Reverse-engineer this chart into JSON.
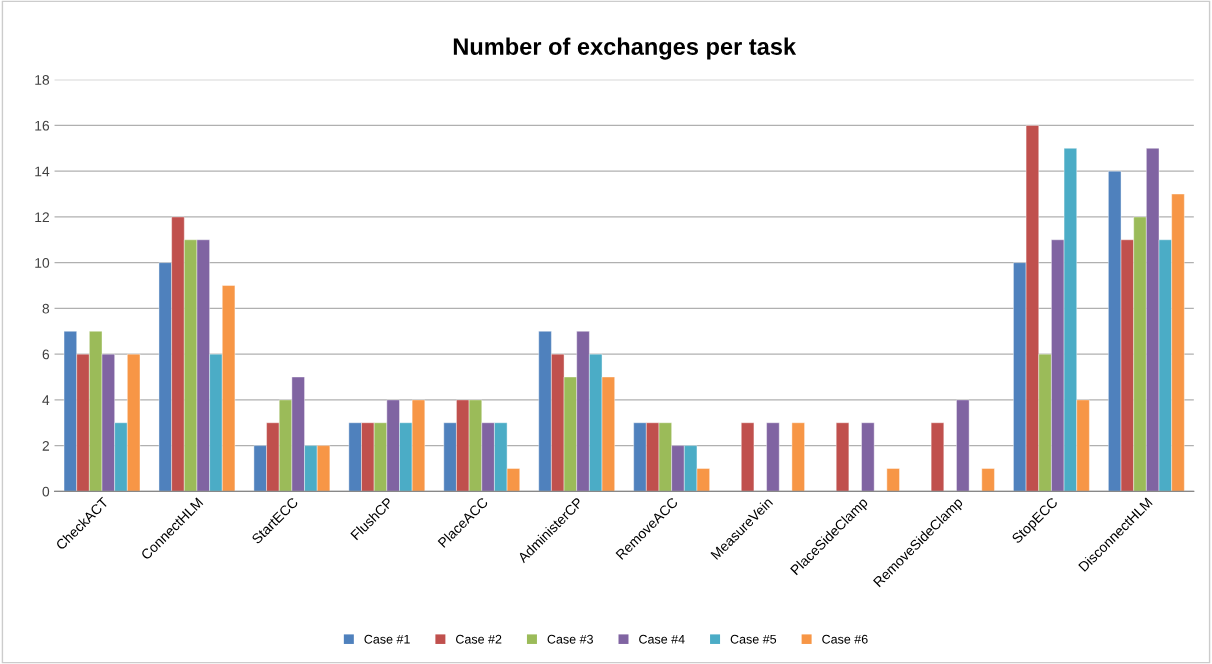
{
  "chart_data": {
    "type": "bar",
    "title": "Number of exchanges per task",
    "categories": [
      "CheckACT",
      "ConnectHLM",
      "StartECC",
      "FlushCP",
      "PlaceACC",
      "AdministerCP",
      "RemoveACC",
      "MeasureVein",
      "PlaceSideClamp",
      "RemoveSideClamp",
      "StopECC",
      "DisconnectHLM"
    ],
    "series": [
      {
        "name": "Case #1",
        "color": "#4f81bd",
        "values": [
          7,
          10,
          2,
          3,
          3,
          7,
          3,
          null,
          null,
          null,
          10,
          14
        ]
      },
      {
        "name": "Case #2",
        "color": "#c0504d",
        "values": [
          6,
          12,
          3,
          3,
          4,
          6,
          3,
          3,
          3,
          3,
          16,
          11
        ]
      },
      {
        "name": "Case #3",
        "color": "#9bbb59",
        "values": [
          7,
          11,
          4,
          3,
          4,
          5,
          3,
          null,
          null,
          null,
          6,
          12
        ]
      },
      {
        "name": "Case #4",
        "color": "#8064a2",
        "values": [
          6,
          11,
          5,
          4,
          3,
          7,
          2,
          3,
          3,
          4,
          11,
          15
        ]
      },
      {
        "name": "Case #5",
        "color": "#4bacc6",
        "values": [
          3,
          6,
          2,
          3,
          3,
          6,
          2,
          null,
          null,
          null,
          15,
          11
        ]
      },
      {
        "name": "Case #6",
        "color": "#f79646",
        "values": [
          6,
          9,
          2,
          4,
          1,
          5,
          1,
          3,
          1,
          1,
          4,
          13
        ]
      }
    ],
    "ylim": [
      0,
      18
    ],
    "yticks": [
      0,
      2,
      4,
      6,
      8,
      10,
      12,
      14,
      16,
      18
    ],
    "grid": "y",
    "legend": "bottom"
  }
}
